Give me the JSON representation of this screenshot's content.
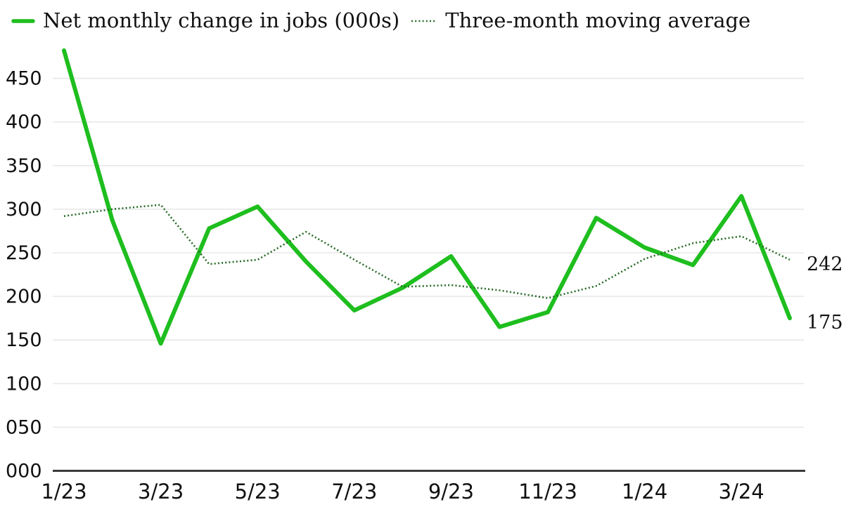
{
  "legend": {
    "items": [
      {
        "label": "Net monthly change in jobs (000s)",
        "color": "#1ebe1e",
        "style": "solid"
      },
      {
        "label": "Three-month moving average",
        "color": "#266b26",
        "style": "dotted"
      }
    ]
  },
  "chart_data": {
    "type": "line",
    "title": "",
    "xlabel": "",
    "ylabel": "",
    "x": [
      "1/23",
      "2/23",
      "3/23",
      "4/23",
      "5/23",
      "6/23",
      "7/23",
      "8/23",
      "9/23",
      "10/23",
      "11/23",
      "12/23",
      "1/24",
      "2/24",
      "3/24",
      "4/24"
    ],
    "x_tick_labels": [
      "1/23",
      "3/23",
      "5/23",
      "7/23",
      "9/23",
      "11/23",
      "1/24",
      "3/24"
    ],
    "y_tick_labels": [
      "000",
      "050",
      "100",
      "150",
      "200",
      "250",
      "300",
      "350",
      "400",
      "450"
    ],
    "y_tick_values": [
      0,
      50,
      100,
      150,
      200,
      250,
      300,
      350,
      400,
      450
    ],
    "ylim": [
      0,
      485
    ],
    "grid": "horizontal",
    "legend_position": "top-left",
    "series": [
      {
        "name": "Net monthly change in jobs (000s)",
        "color": "#1ebe1e",
        "line_style": "solid",
        "values": [
          482,
          287,
          146,
          278,
          303,
          240,
          184,
          210,
          246,
          165,
          182,
          290,
          256,
          236,
          315,
          175
        ]
      },
      {
        "name": "Three-month moving average",
        "color": "#266b26",
        "line_style": "dotted",
        "values": [
          292,
          300,
          305,
          237,
          242,
          274,
          242,
          211,
          213,
          207,
          198,
          212,
          243,
          261,
          269,
          242
        ]
      }
    ],
    "end_labels": [
      {
        "text": "242",
        "series_index": 1
      },
      {
        "text": "175",
        "series_index": 0
      }
    ],
    "colors": {
      "gridline": "#e8e8e8",
      "axis": "#3a3a3a",
      "text": "#111111",
      "background": "#ffffff"
    }
  }
}
